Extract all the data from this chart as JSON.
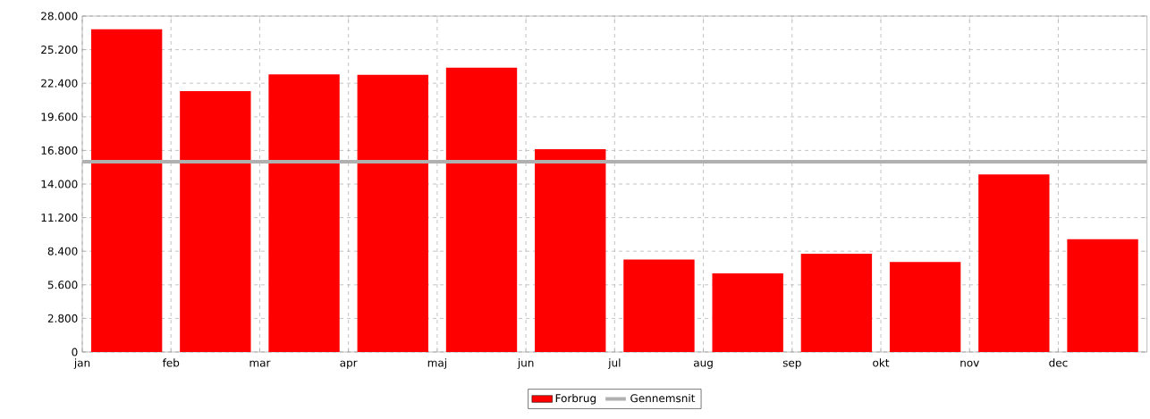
{
  "chart_data": {
    "type": "bar",
    "categories": [
      "jan",
      "feb",
      "mar",
      "apr",
      "maj",
      "jun",
      "jul",
      "aug",
      "sep",
      "okt",
      "nov",
      "dec"
    ],
    "series": [
      {
        "name": "Forbrug",
        "color": "#ff0000",
        "values": [
          26900,
          21750,
          23150,
          23100,
          23700,
          16900,
          7700,
          6550,
          8200,
          7500,
          14800,
          9400
        ]
      }
    ],
    "ylim": [
      0,
      28000
    ],
    "yticks": [
      {
        "value": 0,
        "label": "0"
      },
      {
        "value": 2800,
        "label": "2.800"
      },
      {
        "value": 5600,
        "label": "5.600"
      },
      {
        "value": 8400,
        "label": "8.400"
      },
      {
        "value": 11200,
        "label": "11.200"
      },
      {
        "value": 14000,
        "label": "14.000"
      },
      {
        "value": 16800,
        "label": "16.800"
      },
      {
        "value": 19600,
        "label": "19.600"
      },
      {
        "value": 22400,
        "label": "22.400"
      },
      {
        "value": 25200,
        "label": "25.200"
      },
      {
        "value": 28000,
        "label": "28.000"
      }
    ],
    "ref_lines": [
      {
        "axis": "y",
        "value": 15860,
        "label": "Gennemsnit",
        "color": "#b0b0b0"
      }
    ],
    "grid": true,
    "legend": "bottom"
  }
}
